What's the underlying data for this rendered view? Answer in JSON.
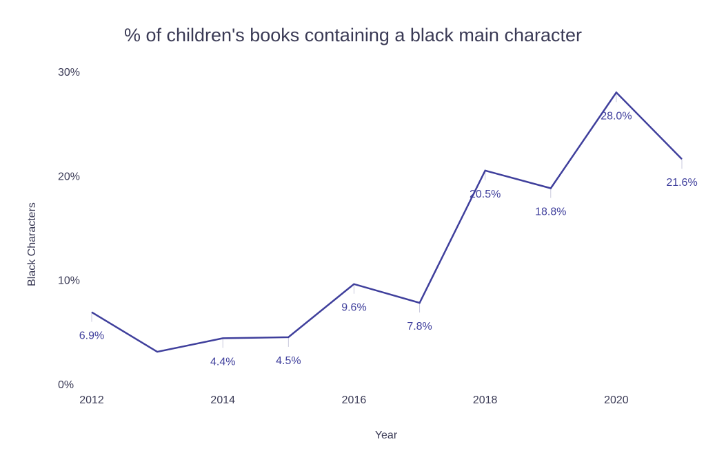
{
  "chart_data": {
    "type": "line",
    "title": "% of children's books containing a black main character",
    "xlabel": "Year",
    "ylabel": "Black Characters",
    "x": [
      2012,
      2013,
      2014,
      2015,
      2016,
      2017,
      2018,
      2019,
      2020,
      2021
    ],
    "values": [
      6.9,
      3.1,
      4.4,
      4.5,
      9.6,
      7.8,
      20.5,
      18.8,
      28.0,
      21.6
    ],
    "data_labels": [
      "6.9%",
      null,
      "4.4%",
      "4.5%",
      "9.6%",
      "7.8%",
      "20.5%",
      "18.8%",
      "28.0%",
      "21.6%"
    ],
    "x_ticks": [
      2012,
      2014,
      2016,
      2018,
      2020
    ],
    "x_tick_labels": [
      "2012",
      "2014",
      "2016",
      "2018",
      "2020"
    ],
    "y_ticks": [
      0,
      10,
      20,
      30
    ],
    "y_tick_labels": [
      "0%",
      "10%",
      "20%",
      "30%"
    ],
    "xlim": [
      2012,
      2021
    ],
    "ylim": [
      0,
      30
    ],
    "grid": false,
    "line_color": "#3f3f9c",
    "text_color": "#3a3a55"
  }
}
